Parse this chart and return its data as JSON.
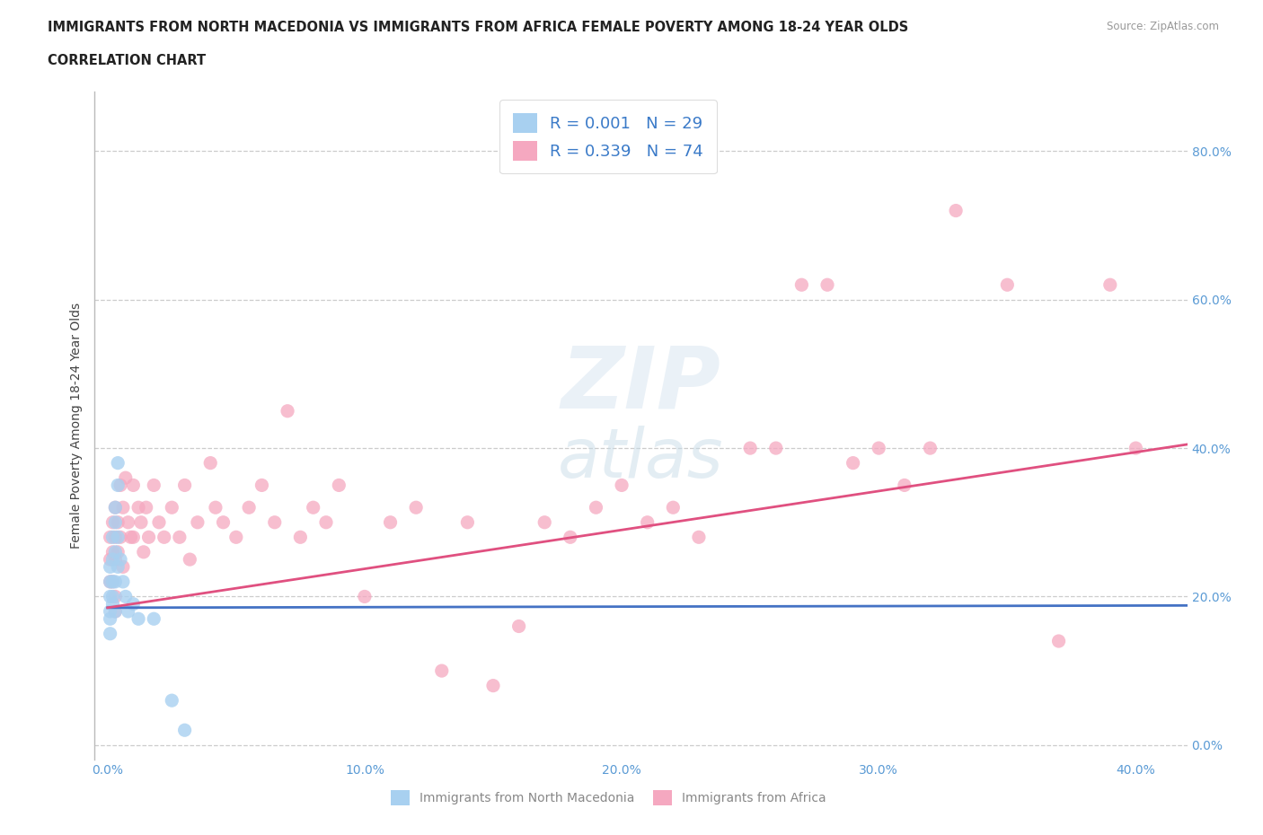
{
  "title_line1": "IMMIGRANTS FROM NORTH MACEDONIA VS IMMIGRANTS FROM AFRICA FEMALE POVERTY AMONG 18-24 YEAR OLDS",
  "title_line2": "CORRELATION CHART",
  "source_text": "Source: ZipAtlas.com",
  "ylabel": "Female Poverty Among 18-24 Year Olds",
  "xlim": [
    -0.005,
    0.42
  ],
  "ylim": [
    -0.02,
    0.88
  ],
  "yticks": [
    0.0,
    0.2,
    0.4,
    0.6,
    0.8
  ],
  "ytick_labels": [
    "0.0%",
    "20.0%",
    "40.0%",
    "60.0%",
    "80.0%"
  ],
  "xticks": [
    0.0,
    0.1,
    0.2,
    0.3,
    0.4
  ],
  "xtick_labels": [
    "0.0%",
    "10.0%",
    "20.0%",
    "30.0%",
    "40.0%"
  ],
  "r_macedonia": 0.001,
  "n_macedonia": 29,
  "r_africa": 0.339,
  "n_africa": 74,
  "color_macedonia": "#a8d0f0",
  "color_africa": "#f5a8c0",
  "color_trendline_macedonia": "#4472c4",
  "color_trendline_africa": "#e05080",
  "legend_label_1": "Immigrants from North Macedonia",
  "legend_label_2": "Immigrants from Africa",
  "trendline_mac_x0": 0.0,
  "trendline_mac_x1": 0.42,
  "trendline_mac_y0": 0.185,
  "trendline_mac_y1": 0.188,
  "trendline_afr_x0": 0.0,
  "trendline_afr_x1": 0.42,
  "trendline_afr_y0": 0.185,
  "trendline_afr_y1": 0.405,
  "scatter_macedonia_x": [
    0.001,
    0.001,
    0.001,
    0.001,
    0.001,
    0.001,
    0.002,
    0.002,
    0.002,
    0.002,
    0.002,
    0.003,
    0.003,
    0.003,
    0.003,
    0.003,
    0.004,
    0.004,
    0.004,
    0.004,
    0.005,
    0.006,
    0.007,
    0.008,
    0.01,
    0.012,
    0.018,
    0.025,
    0.03
  ],
  "scatter_macedonia_y": [
    0.18,
    0.2,
    0.22,
    0.24,
    0.17,
    0.15,
    0.25,
    0.28,
    0.2,
    0.22,
    0.19,
    0.3,
    0.32,
    0.26,
    0.22,
    0.18,
    0.35,
    0.38,
    0.28,
    0.24,
    0.25,
    0.22,
    0.2,
    0.18,
    0.19,
    0.17,
    0.17,
    0.06,
    0.02
  ],
  "scatter_africa_x": [
    0.001,
    0.001,
    0.001,
    0.002,
    0.002,
    0.002,
    0.003,
    0.003,
    0.003,
    0.003,
    0.003,
    0.004,
    0.004,
    0.005,
    0.005,
    0.006,
    0.006,
    0.007,
    0.008,
    0.009,
    0.01,
    0.01,
    0.012,
    0.013,
    0.014,
    0.015,
    0.016,
    0.018,
    0.02,
    0.022,
    0.025,
    0.028,
    0.03,
    0.032,
    0.035,
    0.04,
    0.042,
    0.045,
    0.05,
    0.055,
    0.06,
    0.065,
    0.07,
    0.075,
    0.08,
    0.085,
    0.09,
    0.1,
    0.11,
    0.12,
    0.13,
    0.14,
    0.15,
    0.16,
    0.17,
    0.18,
    0.19,
    0.2,
    0.21,
    0.22,
    0.23,
    0.25,
    0.26,
    0.27,
    0.28,
    0.29,
    0.3,
    0.31,
    0.32,
    0.33,
    0.35,
    0.37,
    0.39,
    0.4
  ],
  "scatter_africa_y": [
    0.25,
    0.28,
    0.22,
    0.3,
    0.26,
    0.22,
    0.32,
    0.28,
    0.25,
    0.2,
    0.18,
    0.3,
    0.26,
    0.35,
    0.28,
    0.32,
    0.24,
    0.36,
    0.3,
    0.28,
    0.35,
    0.28,
    0.32,
    0.3,
    0.26,
    0.32,
    0.28,
    0.35,
    0.3,
    0.28,
    0.32,
    0.28,
    0.35,
    0.25,
    0.3,
    0.38,
    0.32,
    0.3,
    0.28,
    0.32,
    0.35,
    0.3,
    0.45,
    0.28,
    0.32,
    0.3,
    0.35,
    0.2,
    0.3,
    0.32,
    0.1,
    0.3,
    0.08,
    0.16,
    0.3,
    0.28,
    0.32,
    0.35,
    0.3,
    0.32,
    0.28,
    0.4,
    0.4,
    0.62,
    0.62,
    0.38,
    0.4,
    0.35,
    0.4,
    0.72,
    0.62,
    0.14,
    0.62,
    0.4
  ]
}
